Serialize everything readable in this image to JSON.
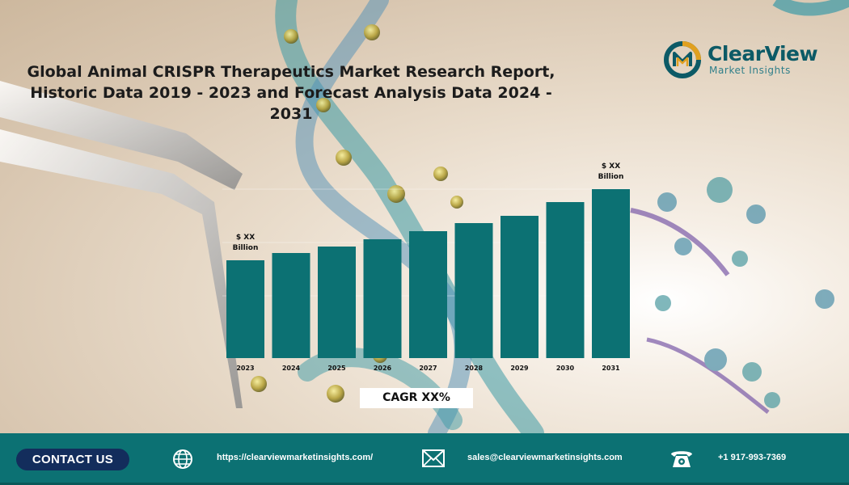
{
  "title": {
    "line1": "Global Animal CRISPR Therapeutics Market Research Report,",
    "line2": "Historic Data 2019 - 2023 and Forecast Analysis Data 2024 - 2031"
  },
  "logo": {
    "name": "ClearView",
    "tagline": "Market Insights",
    "accent": "#0c5a66"
  },
  "chart_data": {
    "type": "bar",
    "categories": [
      "2023",
      "2024",
      "2025",
      "2026",
      "2027",
      "2028",
      "2029",
      "2030",
      "2031"
    ],
    "values": [
      121,
      130,
      138,
      147,
      157,
      167,
      176,
      193,
      209
    ],
    "bar_color": "#0c7173",
    "grid": true,
    "annotations": [
      {
        "category": "2023",
        "line1": "$ XX",
        "line2": "Billion"
      },
      {
        "category": "2031",
        "line1": "$ XX",
        "line2": "Billion"
      }
    ]
  },
  "cagr_label": "CAGR XX%",
  "footer": {
    "contact_label": "CONTACT US",
    "website": "https://clearviewmarketinsights.com/",
    "email": "sales@clearviewmarketinsights.com",
    "phone": "+1 917-993-7369",
    "icons": [
      "globe-icon",
      "mail-icon",
      "phone-icon"
    ],
    "background": "#0c7173"
  }
}
